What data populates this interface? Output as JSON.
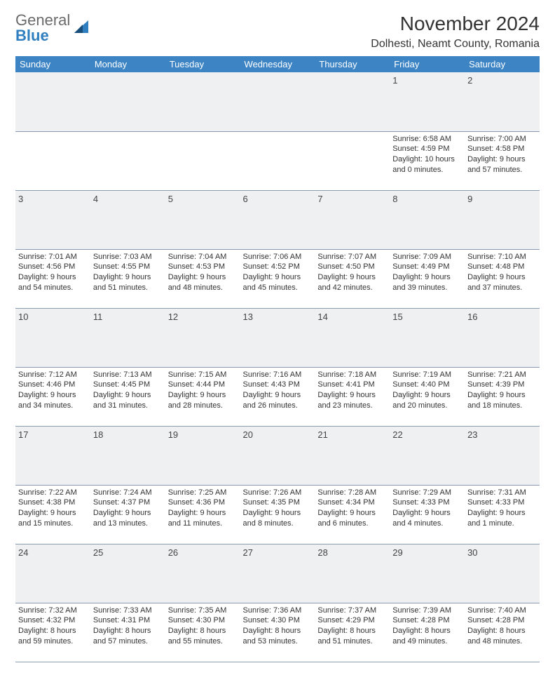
{
  "logo": {
    "line1": "General",
    "line2": "Blue"
  },
  "title": "November 2024",
  "subtitle": "Dolhesti, Neamt County, Romania",
  "colors": {
    "header_bg": "#3d84c5",
    "header_fg": "#ffffff",
    "daynum_bg": "#eef0f2",
    "border": "#8a9bb0",
    "logo_gray": "#6b6b6b",
    "logo_blue": "#2f7fc0"
  },
  "day_headers": [
    "Sunday",
    "Monday",
    "Tuesday",
    "Wednesday",
    "Thursday",
    "Friday",
    "Saturday"
  ],
  "weeks": [
    [
      {
        "day": "",
        "sunrise": "",
        "sunset": "",
        "daylight": ""
      },
      {
        "day": "",
        "sunrise": "",
        "sunset": "",
        "daylight": ""
      },
      {
        "day": "",
        "sunrise": "",
        "sunset": "",
        "daylight": ""
      },
      {
        "day": "",
        "sunrise": "",
        "sunset": "",
        "daylight": ""
      },
      {
        "day": "",
        "sunrise": "",
        "sunset": "",
        "daylight": ""
      },
      {
        "day": "1",
        "sunrise": "Sunrise: 6:58 AM",
        "sunset": "Sunset: 4:59 PM",
        "daylight": "Daylight: 10 hours and 0 minutes."
      },
      {
        "day": "2",
        "sunrise": "Sunrise: 7:00 AM",
        "sunset": "Sunset: 4:58 PM",
        "daylight": "Daylight: 9 hours and 57 minutes."
      }
    ],
    [
      {
        "day": "3",
        "sunrise": "Sunrise: 7:01 AM",
        "sunset": "Sunset: 4:56 PM",
        "daylight": "Daylight: 9 hours and 54 minutes."
      },
      {
        "day": "4",
        "sunrise": "Sunrise: 7:03 AM",
        "sunset": "Sunset: 4:55 PM",
        "daylight": "Daylight: 9 hours and 51 minutes."
      },
      {
        "day": "5",
        "sunrise": "Sunrise: 7:04 AM",
        "sunset": "Sunset: 4:53 PM",
        "daylight": "Daylight: 9 hours and 48 minutes."
      },
      {
        "day": "6",
        "sunrise": "Sunrise: 7:06 AM",
        "sunset": "Sunset: 4:52 PM",
        "daylight": "Daylight: 9 hours and 45 minutes."
      },
      {
        "day": "7",
        "sunrise": "Sunrise: 7:07 AM",
        "sunset": "Sunset: 4:50 PM",
        "daylight": "Daylight: 9 hours and 42 minutes."
      },
      {
        "day": "8",
        "sunrise": "Sunrise: 7:09 AM",
        "sunset": "Sunset: 4:49 PM",
        "daylight": "Daylight: 9 hours and 39 minutes."
      },
      {
        "day": "9",
        "sunrise": "Sunrise: 7:10 AM",
        "sunset": "Sunset: 4:48 PM",
        "daylight": "Daylight: 9 hours and 37 minutes."
      }
    ],
    [
      {
        "day": "10",
        "sunrise": "Sunrise: 7:12 AM",
        "sunset": "Sunset: 4:46 PM",
        "daylight": "Daylight: 9 hours and 34 minutes."
      },
      {
        "day": "11",
        "sunrise": "Sunrise: 7:13 AM",
        "sunset": "Sunset: 4:45 PM",
        "daylight": "Daylight: 9 hours and 31 minutes."
      },
      {
        "day": "12",
        "sunrise": "Sunrise: 7:15 AM",
        "sunset": "Sunset: 4:44 PM",
        "daylight": "Daylight: 9 hours and 28 minutes."
      },
      {
        "day": "13",
        "sunrise": "Sunrise: 7:16 AM",
        "sunset": "Sunset: 4:43 PM",
        "daylight": "Daylight: 9 hours and 26 minutes."
      },
      {
        "day": "14",
        "sunrise": "Sunrise: 7:18 AM",
        "sunset": "Sunset: 4:41 PM",
        "daylight": "Daylight: 9 hours and 23 minutes."
      },
      {
        "day": "15",
        "sunrise": "Sunrise: 7:19 AM",
        "sunset": "Sunset: 4:40 PM",
        "daylight": "Daylight: 9 hours and 20 minutes."
      },
      {
        "day": "16",
        "sunrise": "Sunrise: 7:21 AM",
        "sunset": "Sunset: 4:39 PM",
        "daylight": "Daylight: 9 hours and 18 minutes."
      }
    ],
    [
      {
        "day": "17",
        "sunrise": "Sunrise: 7:22 AM",
        "sunset": "Sunset: 4:38 PM",
        "daylight": "Daylight: 9 hours and 15 minutes."
      },
      {
        "day": "18",
        "sunrise": "Sunrise: 7:24 AM",
        "sunset": "Sunset: 4:37 PM",
        "daylight": "Daylight: 9 hours and 13 minutes."
      },
      {
        "day": "19",
        "sunrise": "Sunrise: 7:25 AM",
        "sunset": "Sunset: 4:36 PM",
        "daylight": "Daylight: 9 hours and 11 minutes."
      },
      {
        "day": "20",
        "sunrise": "Sunrise: 7:26 AM",
        "sunset": "Sunset: 4:35 PM",
        "daylight": "Daylight: 9 hours and 8 minutes."
      },
      {
        "day": "21",
        "sunrise": "Sunrise: 7:28 AM",
        "sunset": "Sunset: 4:34 PM",
        "daylight": "Daylight: 9 hours and 6 minutes."
      },
      {
        "day": "22",
        "sunrise": "Sunrise: 7:29 AM",
        "sunset": "Sunset: 4:33 PM",
        "daylight": "Daylight: 9 hours and 4 minutes."
      },
      {
        "day": "23",
        "sunrise": "Sunrise: 7:31 AM",
        "sunset": "Sunset: 4:33 PM",
        "daylight": "Daylight: 9 hours and 1 minute."
      }
    ],
    [
      {
        "day": "24",
        "sunrise": "Sunrise: 7:32 AM",
        "sunset": "Sunset: 4:32 PM",
        "daylight": "Daylight: 8 hours and 59 minutes."
      },
      {
        "day": "25",
        "sunrise": "Sunrise: 7:33 AM",
        "sunset": "Sunset: 4:31 PM",
        "daylight": "Daylight: 8 hours and 57 minutes."
      },
      {
        "day": "26",
        "sunrise": "Sunrise: 7:35 AM",
        "sunset": "Sunset: 4:30 PM",
        "daylight": "Daylight: 8 hours and 55 minutes."
      },
      {
        "day": "27",
        "sunrise": "Sunrise: 7:36 AM",
        "sunset": "Sunset: 4:30 PM",
        "daylight": "Daylight: 8 hours and 53 minutes."
      },
      {
        "day": "28",
        "sunrise": "Sunrise: 7:37 AM",
        "sunset": "Sunset: 4:29 PM",
        "daylight": "Daylight: 8 hours and 51 minutes."
      },
      {
        "day": "29",
        "sunrise": "Sunrise: 7:39 AM",
        "sunset": "Sunset: 4:28 PM",
        "daylight": "Daylight: 8 hours and 49 minutes."
      },
      {
        "day": "30",
        "sunrise": "Sunrise: 7:40 AM",
        "sunset": "Sunset: 4:28 PM",
        "daylight": "Daylight: 8 hours and 48 minutes."
      }
    ]
  ]
}
